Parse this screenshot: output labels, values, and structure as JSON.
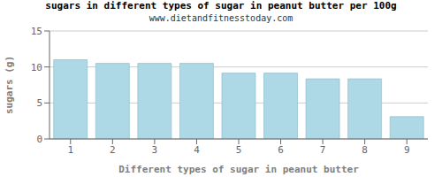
{
  "chart_data": {
    "type": "bar",
    "title": "sugars in different types of sugar in peanut butter per 100g",
    "subtitle": "www.dietandfitnesstoday.com",
    "xlabel": "Different types of sugar in peanut butter",
    "ylabel": "sugars (g)",
    "categories": [
      1,
      2,
      3,
      4,
      5,
      6,
      7,
      8,
      9
    ],
    "values": [
      11.0,
      10.5,
      10.5,
      10.5,
      9.15,
      9.15,
      8.35,
      8.35,
      3.1
    ],
    "color": "#add8e6",
    "ylim": [
      0,
      15
    ],
    "yticks": [
      0,
      5,
      10,
      15
    ],
    "grid": true
  }
}
